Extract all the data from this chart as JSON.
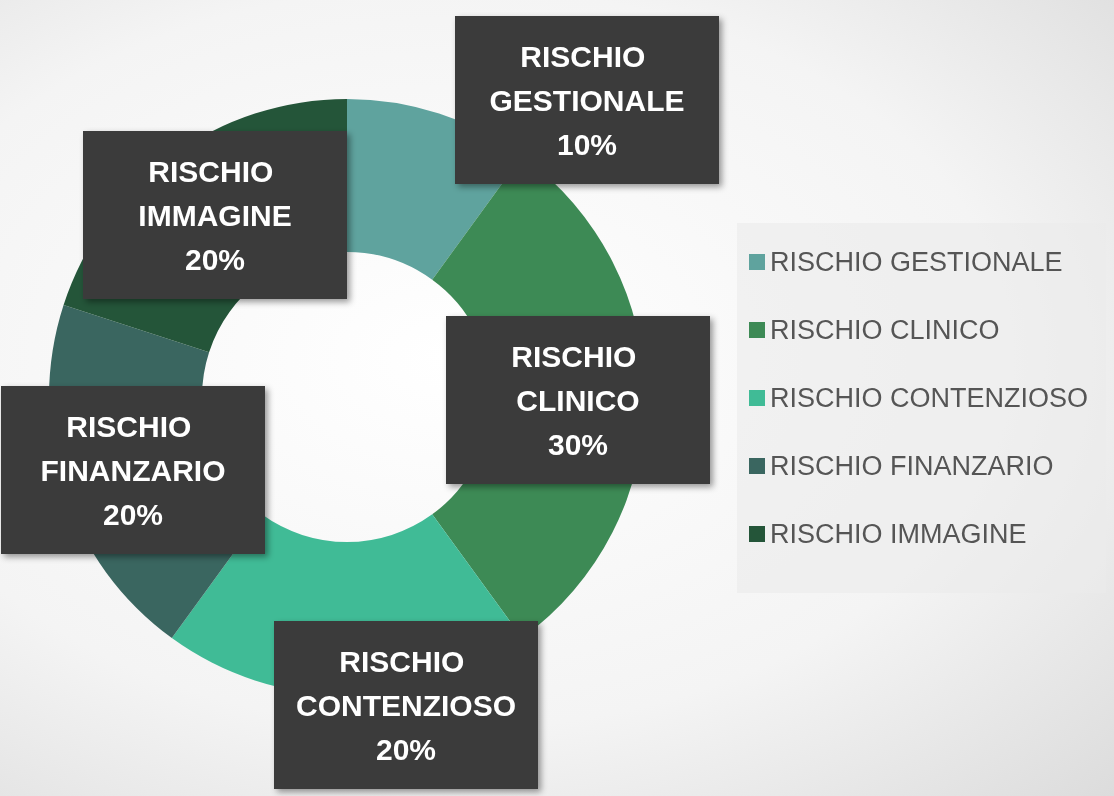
{
  "chart_data": {
    "type": "donut",
    "categories": [
      "RISCHIO GESTIONALE",
      "RISCHIO CLINICO",
      "RISCHIO CONTENZIOSO",
      "RISCHIO FINANZARIO",
      "RISCHIO IMMAGINE"
    ],
    "values": [
      10,
      30,
      20,
      20,
      20
    ],
    "colors": [
      "#5fa39e",
      "#3d8a55",
      "#40bb96",
      "#3a6660",
      "#245539"
    ],
    "value_labels": [
      "10%",
      "30%",
      "20%",
      "20%",
      "20%"
    ],
    "legend": "right"
  }
}
